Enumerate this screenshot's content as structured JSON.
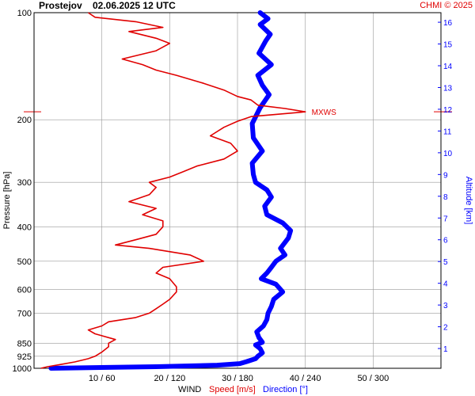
{
  "header": {
    "station": "Prostejov",
    "datetime": "02.06.2025 12 UTC",
    "copyright": "CHMI © 2025"
  },
  "axes": {
    "left_label": "Pressure [hPa]",
    "right_label": "Altitude [km]",
    "bottom_prefix": "WIND",
    "bottom_speed": "Speed [m/s]",
    "bottom_direction": "Direction [°]"
  },
  "colors": {
    "speed": "#e00000",
    "direction": "#0000ff",
    "grid": "#999999",
    "text": "#000000"
  },
  "chart_data": {
    "type": "line",
    "title": "Prostejov 02.06.2025 12 UTC",
    "xlabel": "WIND Speed [m/s] Direction [°]",
    "ylabel": "Pressure [hPa]",
    "y2label": "Altitude [km]",
    "y_scale": "log",
    "ylim": [
      1000,
      100
    ],
    "xlim_speed": [
      0,
      60
    ],
    "xlim_direction": [
      0,
      360
    ],
    "pressure_ticks": [
      100,
      200,
      300,
      400,
      500,
      600,
      700,
      850,
      925,
      1000
    ],
    "altitude_ticks": [
      1,
      2,
      3,
      4,
      5,
      6,
      7,
      8,
      9,
      10,
      11,
      12,
      13,
      14,
      15,
      16
    ],
    "x_tick_labels": [
      "10 / 60",
      "20 / 120",
      "30 / 180",
      "40 / 240",
      "50 / 300"
    ],
    "grid": true,
    "annotation": "MXWS",
    "max_wind_pressure": 190,
    "series": [
      {
        "name": "Speed [m/s]",
        "unit": "m/s",
        "points": [
          [
            1000,
            1
          ],
          [
            990,
            2
          ],
          [
            975,
            4
          ],
          [
            960,
            6
          ],
          [
            940,
            8
          ],
          [
            925,
            9
          ],
          [
            900,
            10
          ],
          [
            870,
            11
          ],
          [
            850,
            11
          ],
          [
            830,
            12
          ],
          [
            800,
            9
          ],
          [
            780,
            8
          ],
          [
            760,
            10
          ],
          [
            740,
            11
          ],
          [
            720,
            15
          ],
          [
            700,
            17
          ],
          [
            680,
            18
          ],
          [
            660,
            19
          ],
          [
            640,
            20
          ],
          [
            610,
            21
          ],
          [
            590,
            21
          ],
          [
            560,
            20
          ],
          [
            540,
            18
          ],
          [
            520,
            19
          ],
          [
            500,
            25
          ],
          [
            480,
            23
          ],
          [
            460,
            17
          ],
          [
            450,
            12
          ],
          [
            435,
            15
          ],
          [
            420,
            18
          ],
          [
            400,
            19
          ],
          [
            385,
            19
          ],
          [
            370,
            16
          ],
          [
            355,
            18
          ],
          [
            340,
            14
          ],
          [
            325,
            17
          ],
          [
            310,
            18
          ],
          [
            300,
            17
          ],
          [
            290,
            20
          ],
          [
            280,
            22
          ],
          [
            270,
            24
          ],
          [
            258,
            28
          ],
          [
            245,
            30
          ],
          [
            233,
            29
          ],
          [
            222,
            26
          ],
          [
            210,
            28
          ],
          [
            202,
            30
          ],
          [
            196,
            32
          ],
          [
            190,
            40
          ],
          [
            186,
            37
          ],
          [
            182,
            33
          ],
          [
            176,
            32
          ],
          [
            172,
            30
          ],
          [
            165,
            28
          ],
          [
            158,
            25
          ],
          [
            150,
            21
          ],
          [
            145,
            18
          ],
          [
            140,
            16
          ],
          [
            135,
            13
          ],
          [
            128,
            18
          ],
          [
            122,
            20
          ],
          [
            118,
            18
          ],
          [
            113,
            14
          ],
          [
            110,
            19
          ],
          [
            106,
            15
          ],
          [
            103,
            9
          ],
          [
            100,
            8
          ]
        ]
      },
      {
        "name": "Direction [°]",
        "unit": "°",
        "points": [
          [
            1000,
            15
          ],
          [
            990,
            108
          ],
          [
            980,
            162
          ],
          [
            970,
            182
          ],
          [
            958,
            188
          ],
          [
            940,
            196
          ],
          [
            925,
            198
          ],
          [
            905,
            202
          ],
          [
            880,
            200
          ],
          [
            860,
            196
          ],
          [
            845,
            202
          ],
          [
            820,
            199
          ],
          [
            790,
            197
          ],
          [
            760,
            203
          ],
          [
            730,
            206
          ],
          [
            700,
            207
          ],
          [
            670,
            210
          ],
          [
            640,
            212
          ],
          [
            610,
            220
          ],
          [
            580,
            214
          ],
          [
            560,
            201
          ],
          [
            540,
            206
          ],
          [
            520,
            210
          ],
          [
            500,
            214
          ],
          [
            480,
            222
          ],
          [
            460,
            218
          ],
          [
            430,
            225
          ],
          [
            410,
            227
          ],
          [
            390,
            220
          ],
          [
            370,
            206
          ],
          [
            350,
            204
          ],
          [
            330,
            210
          ],
          [
            315,
            206
          ],
          [
            300,
            196
          ],
          [
            285,
            194
          ],
          [
            265,
            193
          ],
          [
            245,
            202
          ],
          [
            225,
            194
          ],
          [
            205,
            193
          ],
          [
            185,
            200
          ],
          [
            170,
            208
          ],
          [
            160,
            202
          ],
          [
            150,
            198
          ],
          [
            140,
            210
          ],
          [
            130,
            199
          ],
          [
            120,
            205
          ],
          [
            115,
            209
          ],
          [
            108,
            200
          ],
          [
            104,
            207
          ],
          [
            100,
            200
          ]
        ]
      }
    ]
  }
}
